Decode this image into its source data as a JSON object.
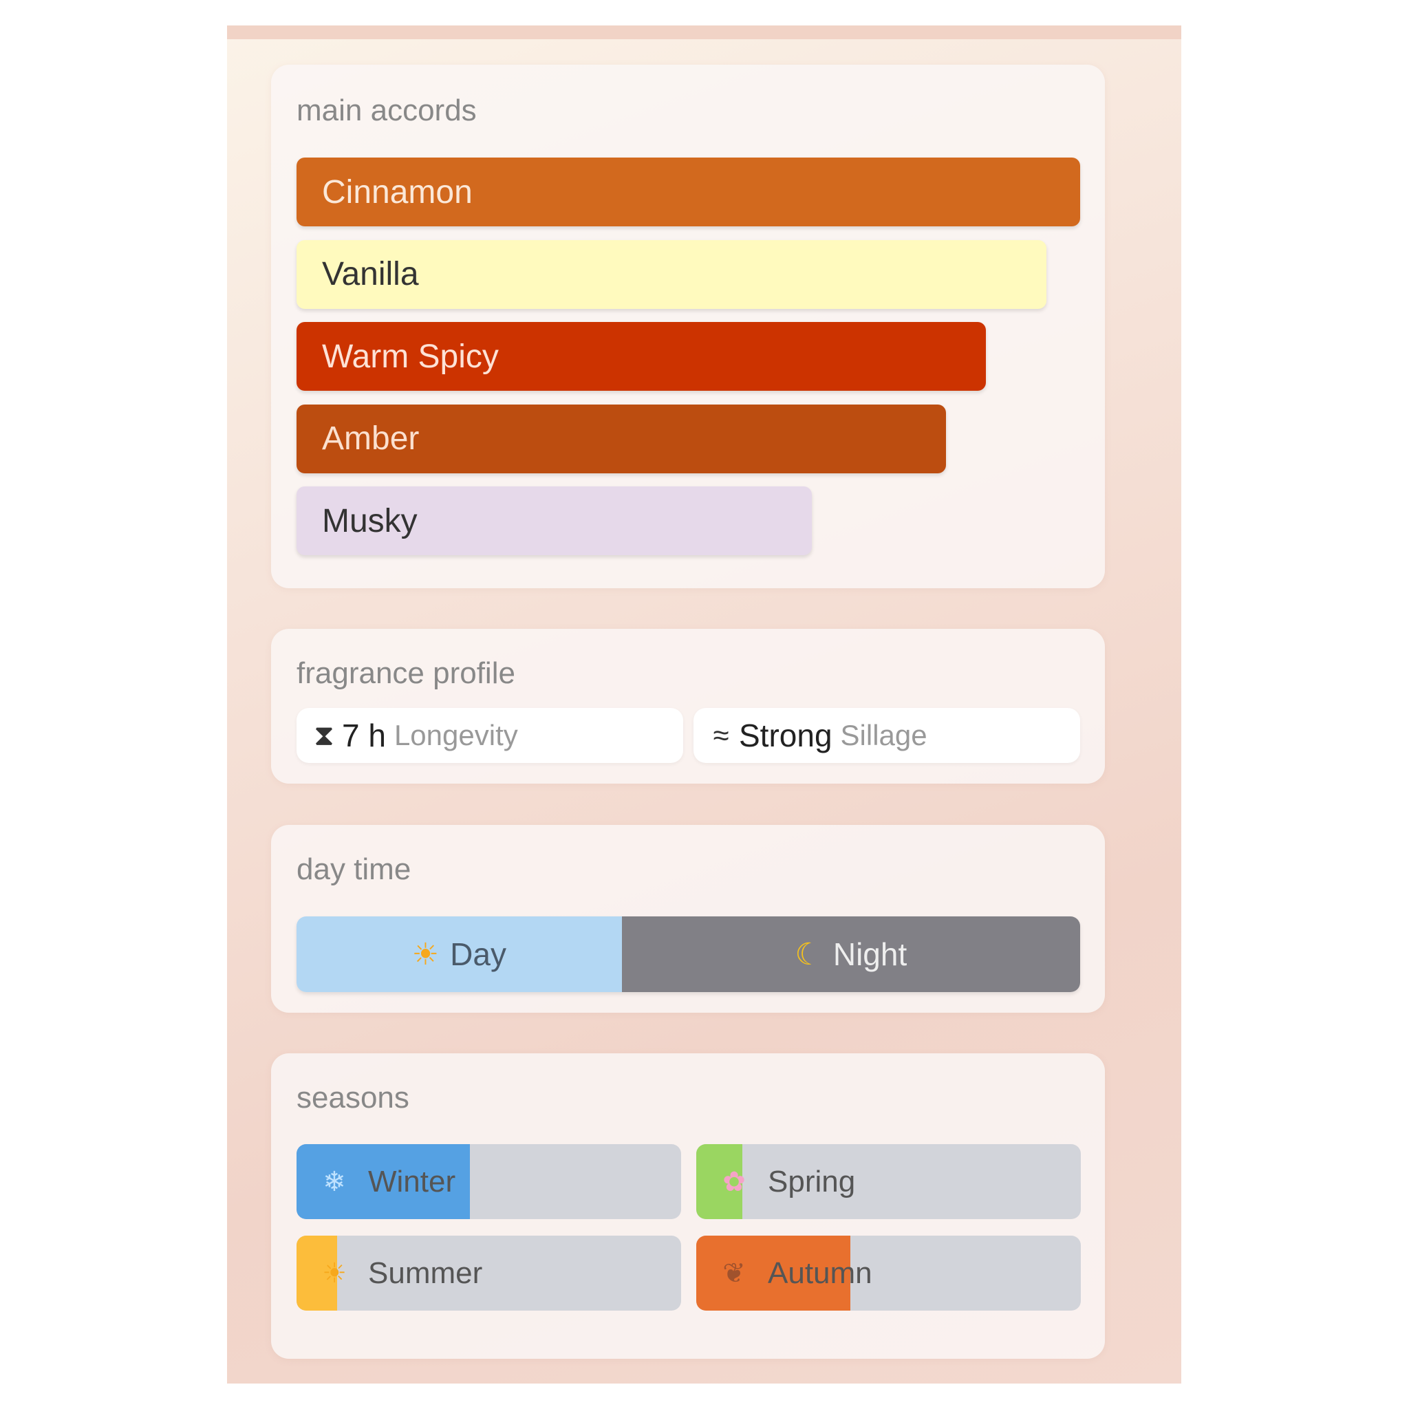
{
  "main_accords": {
    "title": "main accords",
    "items": [
      {
        "label": "Cinnamon",
        "strength": 1.0,
        "color": "#d2691e",
        "text_color": "#fbe8d8"
      },
      {
        "label": "Vanilla",
        "strength": 0.957,
        "color": "#fffabe",
        "text_color": "#333333"
      },
      {
        "label": "Warm Spicy",
        "strength": 0.88,
        "color": "#cc3300",
        "text_color": "#fde2d6"
      },
      {
        "label": "Amber",
        "strength": 0.829,
        "color": "#bc4d10",
        "text_color": "#fbe0cf"
      },
      {
        "label": "Musky",
        "strength": 0.658,
        "color": "#e6d9ea",
        "text_color": "#333333"
      }
    ]
  },
  "fragrance_profile": {
    "title": "fragrance profile",
    "longevity": {
      "icon": "hourglass-icon",
      "value": "7 h",
      "label": "Longevity"
    },
    "sillage": {
      "icon": "waves-icon",
      "value": "Strong",
      "label": "Sillage"
    }
  },
  "day_time": {
    "title": "day time",
    "day": {
      "label": "Day",
      "icon": "sun-icon",
      "share": 0.415,
      "color": "#b3d7f3"
    },
    "night": {
      "label": "Night",
      "icon": "moon-icon",
      "color": "#818086"
    }
  },
  "seasons": {
    "title": "seasons",
    "items": [
      {
        "label": "Winter",
        "icon": "snowflake-icon",
        "share": 0.45,
        "color": "#55a1e3"
      },
      {
        "label": "Spring",
        "icon": "blossom-icon",
        "share": 0.12,
        "color": "#9ad661"
      },
      {
        "label": "Summer",
        "icon": "sun-icon",
        "share": 0.105,
        "color": "#fcbd3b"
      },
      {
        "label": "Autumn",
        "icon": "leaves-icon",
        "share": 0.4,
        "color": "#e8702e"
      }
    ]
  }
}
